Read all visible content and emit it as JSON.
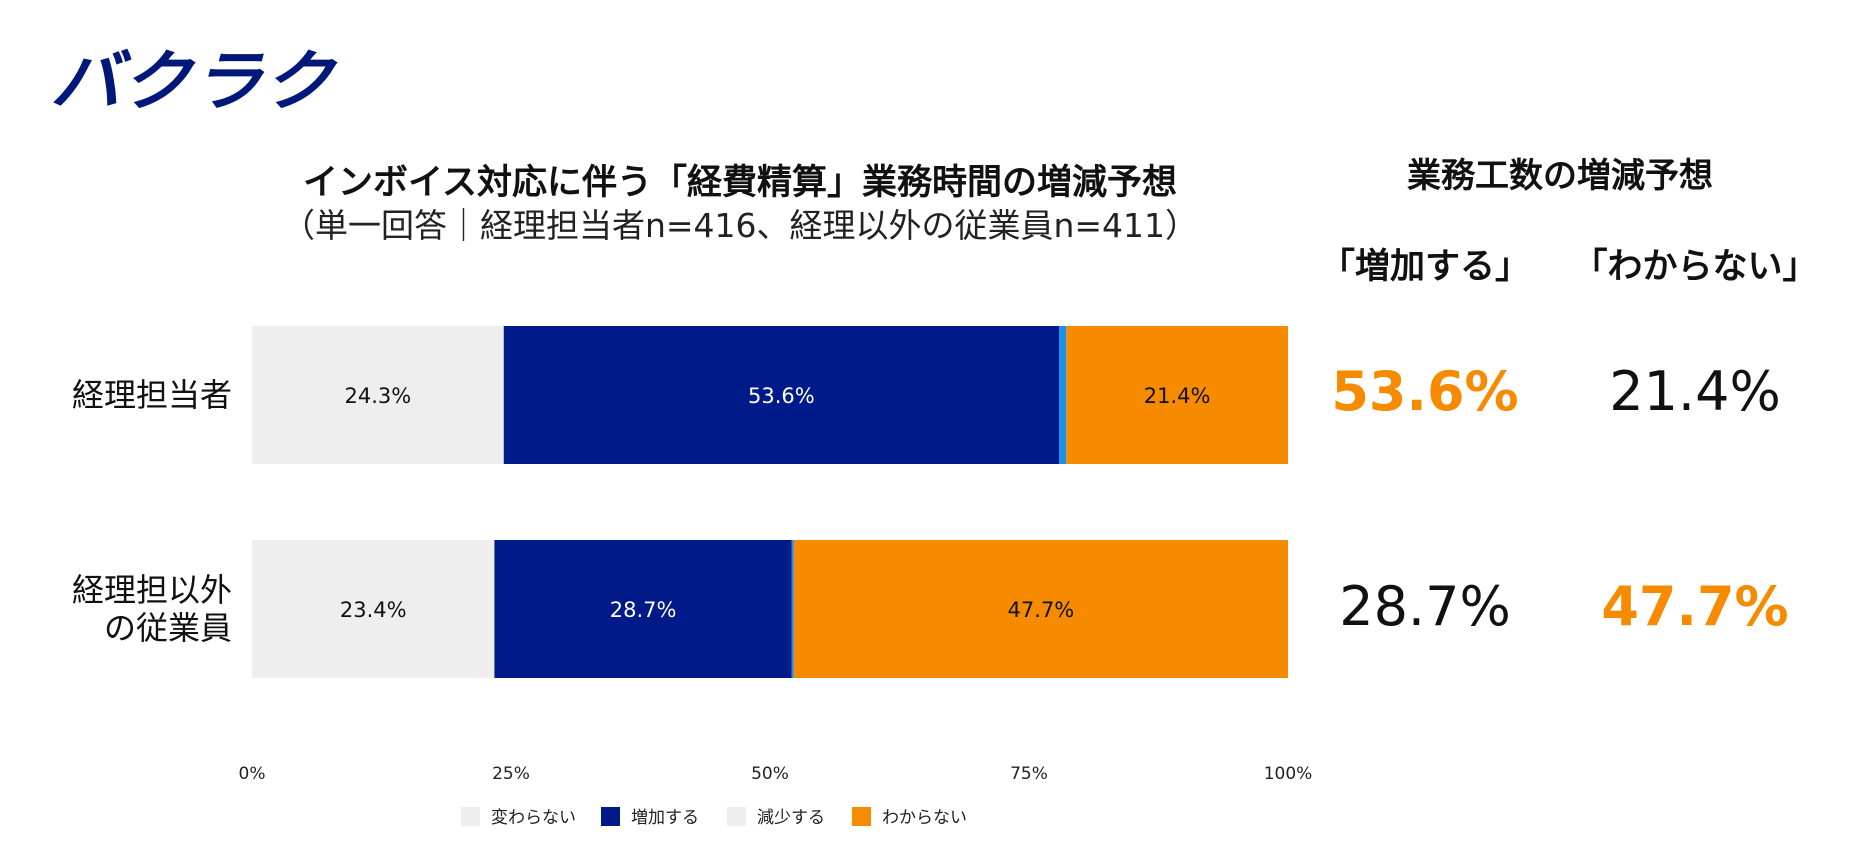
{
  "logo": {
    "text": "バクラク",
    "color": "#00187a"
  },
  "title": "インボイス対応に伴う「経費精算」業務時間の増減予想",
  "subtitle": "（単一回答｜経理担当者n=416、経理以外の従業員n=411）",
  "side_panel": {
    "title": "業務工数の増減予想",
    "col_increase": "「増加する」",
    "col_unknown": "「わからない」",
    "rows": [
      {
        "increase": "53.6%",
        "unknown": "21.4%",
        "highlight": "increase"
      },
      {
        "increase": "28.7%",
        "unknown": "47.7%",
        "highlight": "unknown"
      }
    ]
  },
  "colors": {
    "unchanged": "#eeeeee",
    "increase": "#001a8a",
    "decrease": "#1e8fe8",
    "unknown": "#f68b00",
    "highlight": "#f68b00"
  },
  "chart_data": {
    "type": "bar",
    "orientation": "horizontal",
    "stacked": true,
    "categories": [
      [
        "経理担当者"
      ],
      [
        "経理担以外",
        "の従業員"
      ]
    ],
    "series": [
      {
        "name": "変わらない",
        "values": [
          24.3,
          23.4
        ],
        "color": "#eeeeee",
        "label_color": "#111111",
        "show_labels": true
      },
      {
        "name": "増加する",
        "values": [
          53.6,
          28.7
        ],
        "color": "#001a8a",
        "label_color": "#ffffff",
        "show_labels": true
      },
      {
        "name": "減少する",
        "values": [
          0.7,
          0.2
        ],
        "color": "#1e8fe8",
        "label_color": "#111111",
        "show_labels": false
      },
      {
        "name": "わからない",
        "values": [
          21.4,
          47.7
        ],
        "color": "#f68b00",
        "label_color": "#111111",
        "show_labels": true
      }
    ],
    "legend": [
      {
        "name": "変わらない",
        "color": "#eeeeee"
      },
      {
        "name": "増加する",
        "color": "#001a8a"
      },
      {
        "name": "減少する",
        "color": "#eeeeee"
      },
      {
        "name": "わからない",
        "color": "#f68b00"
      }
    ],
    "x_ticks": [
      "0%",
      "25%",
      "50%",
      "75%",
      "100%"
    ],
    "x_tick_values": [
      0,
      25,
      50,
      75,
      100
    ],
    "xlim": [
      0,
      100
    ],
    "legend_position": "bottom"
  }
}
